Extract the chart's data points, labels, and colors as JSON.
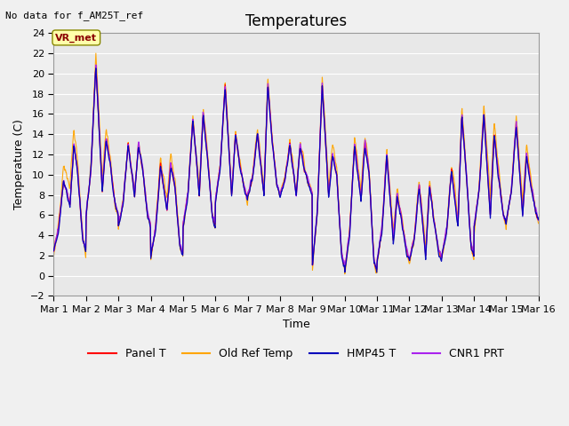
{
  "title": "Temperatures",
  "xlabel": "Time",
  "ylabel": "Temperature (C)",
  "ylim": [
    -2,
    24
  ],
  "xlim": [
    0,
    15
  ],
  "yticks": [
    -2,
    0,
    2,
    4,
    6,
    8,
    10,
    12,
    14,
    16,
    18,
    20,
    22,
    24
  ],
  "xtick_labels": [
    "Mar 1",
    "Mar 2",
    "Mar 3",
    "Mar 4",
    "Mar 5",
    "Mar 6",
    "Mar 7",
    "Mar 8",
    "Mar 9",
    "Mar 10",
    "Mar 11",
    "Mar 12",
    "Mar 13",
    "Mar 14",
    "Mar 15",
    "Mar 16"
  ],
  "xtick_positions": [
    0,
    1,
    2,
    3,
    4,
    5,
    6,
    7,
    8,
    9,
    10,
    11,
    12,
    13,
    14,
    15
  ],
  "series_colors": {
    "panel_t": "#ff0000",
    "old_ref_temp": "#ffa500",
    "hmp45_t": "#0000bb",
    "cnr1_prt": "#aa22ee"
  },
  "legend_labels": [
    "Panel T",
    "Old Ref Temp",
    "HMP45 T",
    "CNR1 PRT"
  ],
  "no_data_text": "No data for f_AM25T_ref",
  "annotation_text": "VR_met",
  "background_color": "#e8e8e8",
  "grid_color": "#ffffff",
  "fig_bg_color": "#f0f0f0",
  "title_fontsize": 12,
  "axis_fontsize": 9,
  "tick_fontsize": 8,
  "legend_fontsize": 9
}
